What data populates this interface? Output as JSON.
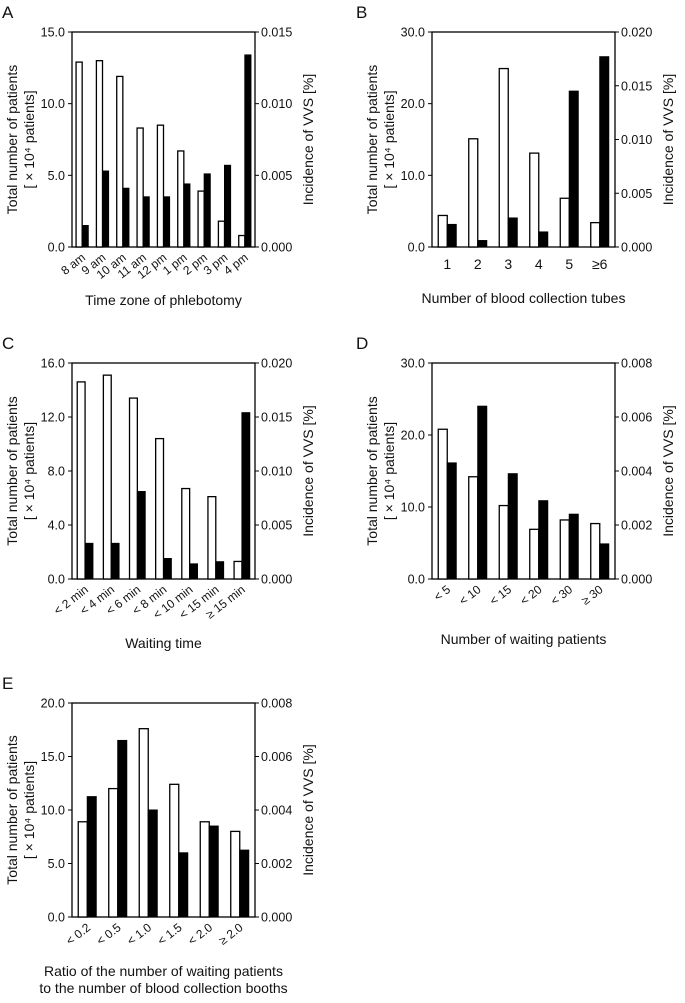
{
  "chart_data": [
    {
      "type": "bar",
      "panel": "A",
      "xlabel": "Time zone of phlebotomy",
      "ylabel_left": [
        "Total number of patients",
        "[ × 10⁴ patients]"
      ],
      "ylabel_right": "Incidence of VVS [%]",
      "categories": [
        "8 am",
        "9 am",
        "10 am",
        "11 am",
        "12 pm",
        "1 pm",
        "2 pm",
        "3 pm",
        "4 pm"
      ],
      "series": [
        {
          "name": "Total number of patients",
          "axis": "left",
          "style": "open",
          "values": [
            12.9,
            13.0,
            11.9,
            8.3,
            8.5,
            6.7,
            3.9,
            1.8,
            0.8
          ]
        },
        {
          "name": "Incidence of VVS",
          "axis": "right",
          "style": "solid",
          "values": [
            0.0015,
            0.0053,
            0.0041,
            0.0035,
            0.0035,
            0.0044,
            0.0051,
            0.0057,
            0.0134
          ]
        }
      ],
      "left_ticks": [
        "0.0",
        "5.0",
        "10.0",
        "15.0"
      ],
      "right_ticks": [
        "0.000",
        "0.005",
        "0.010",
        "0.015"
      ],
      "ylim_left": [
        0,
        15
      ],
      "ylim_right": [
        0,
        0.015
      ],
      "label_rotation": -38
    },
    {
      "type": "bar",
      "panel": "B",
      "xlabel": "Number of blood collection tubes",
      "ylabel_left": [
        "Total number of patients",
        "[ × 10⁴ patients]"
      ],
      "ylabel_right": "Incidence of VVS [%]",
      "categories": [
        "1",
        "2",
        "3",
        "4",
        "5",
        "≥6"
      ],
      "series": [
        {
          "name": "Total number of patients",
          "axis": "left",
          "style": "open",
          "values": [
            4.4,
            15.1,
            24.9,
            13.1,
            6.8,
            3.4
          ]
        },
        {
          "name": "Incidence of VVS",
          "axis": "right",
          "style": "solid",
          "values": [
            0.0021,
            0.0006,
            0.0027,
            0.0014,
            0.0145,
            0.0177
          ]
        }
      ],
      "left_ticks": [
        "0.0",
        "10.0",
        "20.0",
        "30.0"
      ],
      "right_ticks": [
        "0.000",
        "0.005",
        "0.010",
        "0.015",
        "0.020"
      ],
      "ylim_left": [
        0,
        30
      ],
      "ylim_right": [
        0,
        0.02
      ],
      "label_rotation": 0
    },
    {
      "type": "bar",
      "panel": "C",
      "xlabel": "Waiting time",
      "ylabel_left": [
        "Total number of patients",
        "[ × 10⁴ patients]"
      ],
      "ylabel_right": "Incidence of VVS [%]",
      "categories": [
        "< 2 min",
        "< 4 min",
        "< 6 min",
        "< 8 min",
        "< 10 min",
        "< 15 min",
        "≥ 15 min"
      ],
      "series": [
        {
          "name": "Total number of patients",
          "axis": "left",
          "style": "open",
          "values": [
            14.6,
            15.1,
            13.4,
            10.4,
            6.7,
            6.1,
            1.3
          ]
        },
        {
          "name": "Incidence of VVS",
          "axis": "right",
          "style": "solid",
          "values": [
            0.0033,
            0.0033,
            0.0081,
            0.0019,
            0.0014,
            0.0016,
            0.0154
          ]
        }
      ],
      "left_ticks": [
        "0.0",
        "4.0",
        "8.0",
        "12.0",
        "16.0"
      ],
      "right_ticks": [
        "0.000",
        "0.005",
        "0.010",
        "0.015",
        "0.020"
      ],
      "ylim_left": [
        0,
        16
      ],
      "ylim_right": [
        0,
        0.02
      ],
      "label_rotation": -38
    },
    {
      "type": "bar",
      "panel": "D",
      "xlabel": "Number of waiting patients",
      "ylabel_left": [
        "Total number of patients",
        "[ × 10⁴ patients]"
      ],
      "ylabel_right": "Incidence of VVS [%]",
      "categories": [
        "< 5",
        "< 10",
        "< 15",
        "< 20",
        "< 30",
        "≥ 30"
      ],
      "series": [
        {
          "name": "Total number of patients",
          "axis": "left",
          "style": "open",
          "values": [
            20.8,
            14.2,
            10.2,
            6.9,
            8.2,
            7.7
          ]
        },
        {
          "name": "Incidence of VVS",
          "axis": "right",
          "style": "solid",
          "values": [
            0.0043,
            0.0064,
            0.0039,
            0.0029,
            0.0024,
            0.0013
          ]
        }
      ],
      "left_ticks": [
        "0.0",
        "10.0",
        "20.0",
        "30.0"
      ],
      "right_ticks": [
        "0.000",
        "0.002",
        "0.004",
        "0.006",
        "0.008"
      ],
      "ylim_left": [
        0,
        30
      ],
      "ylim_right": [
        0,
        0.008
      ],
      "label_rotation": -38
    },
    {
      "type": "bar",
      "panel": "E",
      "xlabel": [
        "Ratio of the number of waiting patients",
        "to the number of blood collection booths"
      ],
      "ylabel_left": [
        "Total number of patients",
        "[ × 10⁴ patients]"
      ],
      "ylabel_right": "Incidence of VVS [%]",
      "categories": [
        "< 0.2",
        "< 0.5",
        "< 1.0",
        "< 1.5",
        "< 2.0",
        "≥ 2.0"
      ],
      "series": [
        {
          "name": "Total number of patients",
          "axis": "left",
          "style": "open",
          "values": [
            8.9,
            12.0,
            17.6,
            12.4,
            8.9,
            8.0
          ]
        },
        {
          "name": "Incidence of VVS",
          "axis": "right",
          "style": "solid",
          "values": [
            0.0045,
            0.0066,
            0.004,
            0.0024,
            0.0034,
            0.0025
          ]
        }
      ],
      "left_ticks": [
        "0.0",
        "5.0",
        "10.0",
        "15.0",
        "20.0"
      ],
      "right_ticks": [
        "0.000",
        "0.002",
        "0.004",
        "0.006",
        "0.008"
      ],
      "ylim_left": [
        0,
        20
      ],
      "ylim_right": [
        0,
        0.008
      ],
      "label_rotation": -38
    }
  ]
}
